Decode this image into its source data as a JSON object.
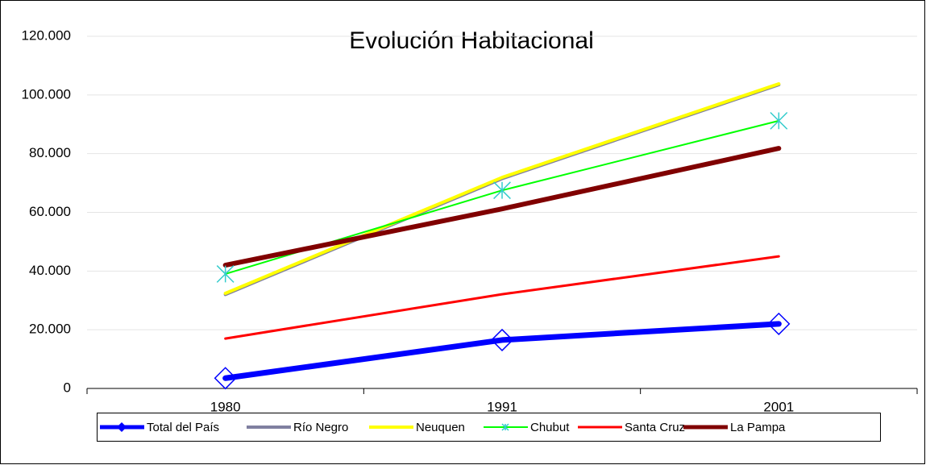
{
  "chart_data": {
    "type": "line",
    "title": "Evolución Habitacional",
    "categories": [
      "1980",
      "1991",
      "2001"
    ],
    "series": [
      {
        "name": "Total del País",
        "color": "#0000ff",
        "width": 7,
        "marker": "diamond",
        "values": [
          3500,
          16500,
          22000
        ]
      },
      {
        "name": "Río Negro",
        "color": "#7f7fa0",
        "width": 4,
        "values": [
          32000,
          71500,
          103500
        ]
      },
      {
        "name": "Neuquen",
        "color": "#ffff00",
        "width": 4,
        "values": [
          32400,
          71900,
          103800
        ]
      },
      {
        "name": "Chubut",
        "color": "#00ff00",
        "width": 2,
        "marker": "star",
        "marker_color": "#33cccc",
        "values": [
          39000,
          67500,
          91200
        ]
      },
      {
        "name": "Santa Cruz",
        "color": "#ff0000",
        "width": 3,
        "values": [
          17000,
          32100,
          45000
        ]
      },
      {
        "name": "La Pampa",
        "color": "#800000",
        "width": 6,
        "values": [
          42000,
          61200,
          81800
        ]
      }
    ],
    "ylim": [
      0,
      120000
    ],
    "yticks": [
      0,
      {
        "value": 20000,
        "label": "20.000"
      },
      {
        "value": 40000,
        "label": "40.000"
      },
      {
        "value": 60000,
        "label": "60.000"
      },
      {
        "value": 80000,
        "label": "80.000"
      },
      {
        "value": 100000,
        "label": "100.000"
      },
      {
        "value": 120000,
        "label": "120.000"
      }
    ],
    "grid": true,
    "legend": "bottom"
  }
}
